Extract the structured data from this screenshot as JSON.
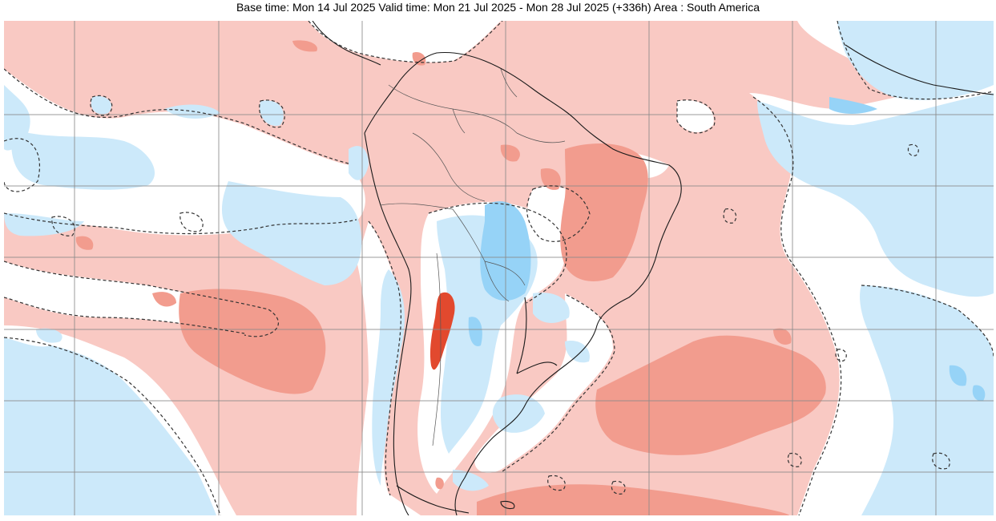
{
  "header": {
    "title": "Base time: Mon 14 Jul 2025 Valid time: Mon 21 Jul 2025 - Mon 28 Jul 2025 (+336h) Area : South America"
  },
  "map": {
    "area": "South America",
    "colors": {
      "warm_light": "#f9c9c3",
      "warm_medium": "#f29c8e",
      "warm_strong": "#e2492e",
      "cool_light": "#cce9fa",
      "cool_medium": "#96d3f7",
      "neutral": "#ffffff",
      "grid": "#8a8a8a",
      "coastline": "#1a1a1a",
      "contour": "#333333"
    }
  }
}
